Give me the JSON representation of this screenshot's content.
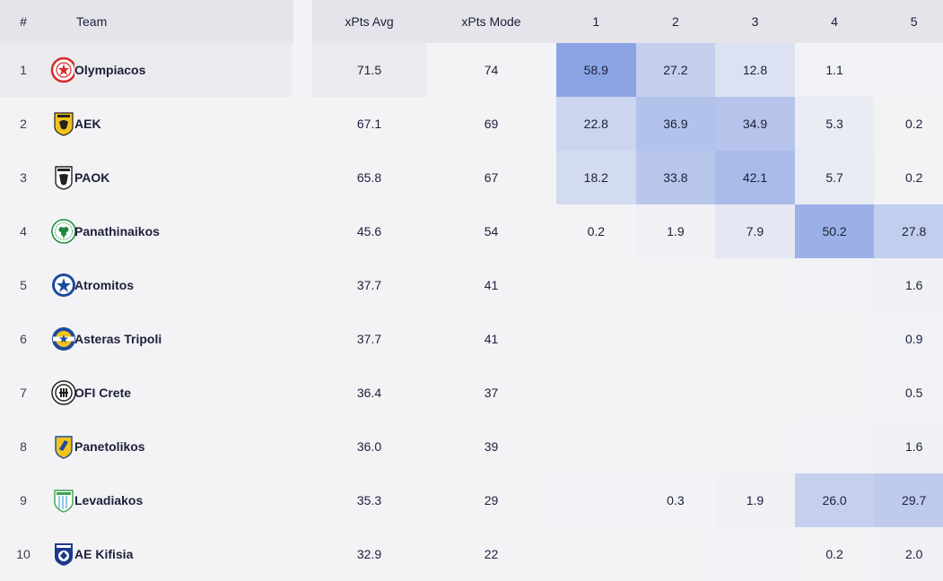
{
  "header": {
    "rank": "#",
    "team": "Team",
    "xpts_avg": "xPts Avg",
    "xpts_mode": "xPts Mode",
    "positions": [
      "1",
      "2",
      "3",
      "4",
      "5"
    ]
  },
  "colors": {
    "header_bg": "#e4e4ea",
    "body_bg": "#f3f3f6",
    "heat_base": "#8fa6e4"
  },
  "rows": [
    {
      "rank": "1",
      "team": "Olympiacos",
      "logo_icon": "olympiacos-crest-icon",
      "xpts_avg": "71.5",
      "xpts_mode": "74",
      "positions": [
        "58.9",
        "27.2",
        "12.8",
        "1.1",
        ""
      ],
      "heat": [
        0.589,
        0.272,
        0.128,
        0.011,
        0.005
      ]
    },
    {
      "rank": "2",
      "team": "AEK",
      "logo_icon": "aek-crest-icon",
      "xpts_avg": "67.1",
      "xpts_mode": "69",
      "positions": [
        "22.8",
        "36.9",
        "34.9",
        "5.3",
        "0.2"
      ],
      "heat": [
        0.228,
        0.369,
        0.349,
        0.053,
        0.002
      ]
    },
    {
      "rank": "3",
      "team": "PAOK",
      "logo_icon": "paok-crest-icon",
      "xpts_avg": "65.8",
      "xpts_mode": "67",
      "positions": [
        "18.2",
        "33.8",
        "42.1",
        "5.7",
        "0.2"
      ],
      "heat": [
        0.182,
        0.338,
        0.421,
        0.057,
        0.002
      ]
    },
    {
      "rank": "4",
      "team": "Panathinaikos",
      "logo_icon": "panathinaikos-crest-icon",
      "xpts_avg": "45.6",
      "xpts_mode": "54",
      "positions": [
        "0.2",
        "1.9",
        "7.9",
        "50.2",
        "27.8"
      ],
      "heat": [
        0.002,
        0.019,
        0.079,
        0.502,
        0.278
      ]
    },
    {
      "rank": "5",
      "team": "Atromitos",
      "logo_icon": "atromitos-crest-icon",
      "xpts_avg": "37.7",
      "xpts_mode": "41",
      "positions": [
        "",
        "",
        "",
        "",
        "1.6"
      ],
      "heat": [
        0,
        0,
        0,
        0.005,
        0.016
      ]
    },
    {
      "rank": "6",
      "team": "Asteras Tripoli",
      "logo_icon": "asteras-crest-icon",
      "xpts_avg": "37.7",
      "xpts_mode": "41",
      "positions": [
        "",
        "",
        "",
        "",
        "0.9"
      ],
      "heat": [
        0,
        0,
        0,
        0,
        0.009
      ]
    },
    {
      "rank": "7",
      "team": "OFI Crete",
      "logo_icon": "ofi-crest-icon",
      "xpts_avg": "36.4",
      "xpts_mode": "37",
      "positions": [
        "",
        "",
        "",
        "",
        "0.5"
      ],
      "heat": [
        0,
        0,
        0,
        0,
        0.005
      ]
    },
    {
      "rank": "8",
      "team": "Panetolikos",
      "logo_icon": "panetolikos-crest-icon",
      "xpts_avg": "36.0",
      "xpts_mode": "39",
      "positions": [
        "",
        "",
        "",
        "",
        "1.6"
      ],
      "heat": [
        0,
        0,
        0,
        0.005,
        0.016
      ]
    },
    {
      "rank": "9",
      "team": "Levadiakos",
      "logo_icon": "levadiakos-crest-icon",
      "xpts_avg": "35.3",
      "xpts_mode": "29",
      "positions": [
        "",
        "0.3",
        "1.9",
        "26.0",
        "29.7"
      ],
      "heat": [
        0.005,
        0.003,
        0.019,
        0.26,
        0.297
      ]
    },
    {
      "rank": "10",
      "team": "AE Kifisia",
      "logo_icon": "kifisia-crest-icon",
      "xpts_avg": "32.9",
      "xpts_mode": "22",
      "positions": [
        "",
        "",
        "",
        "0.2",
        "2.0"
      ],
      "heat": [
        0,
        0,
        0.005,
        0.002,
        0.02
      ]
    }
  ]
}
